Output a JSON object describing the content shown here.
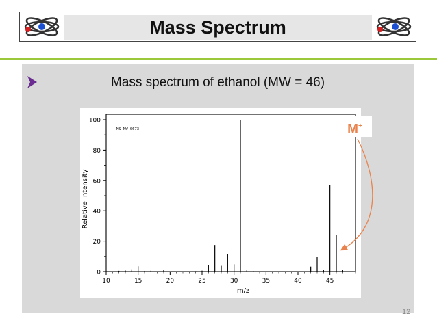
{
  "slide": {
    "title": "Mass Spectrum",
    "subtitle": "Mass spectrum of ethanol (MW = 46)",
    "molecular_ion_label": "M",
    "molecular_ion_charge": "+",
    "page_number": "12",
    "colors": {
      "header_rule": "#9bc83b",
      "content_bg": "#d9d9d9",
      "annotation": "#e8834d"
    },
    "icons": {
      "header_left": "atom-icon",
      "header_right": "atom-icon",
      "bullet": "arrowhead-bullet-icon"
    }
  },
  "chart_data": {
    "type": "bar",
    "code": "MS-NW-0673",
    "xlabel": "m/z",
    "ylabel": "Relative Intensity",
    "xlim": [
      10,
      49
    ],
    "ylim": [
      0,
      100
    ],
    "xticks": [
      10,
      15,
      20,
      25,
      30,
      35,
      40,
      45
    ],
    "yticks": [
      0,
      20,
      40,
      60,
      80,
      100
    ],
    "x": [
      12,
      13,
      14,
      15,
      16,
      17,
      19,
      24,
      25,
      26,
      27,
      28,
      29,
      30,
      31,
      32,
      33,
      42,
      43,
      44,
      45,
      46,
      47
    ],
    "values": [
      0.5,
      0.7,
      1.5,
      3.5,
      0.4,
      0.6,
      1.2,
      0.3,
      0.6,
      4.5,
      17.5,
      3.8,
      11.5,
      4.8,
      100,
      1.2,
      0.4,
      3.3,
      9.5,
      0.9,
      57,
      24,
      1.0
    ]
  }
}
